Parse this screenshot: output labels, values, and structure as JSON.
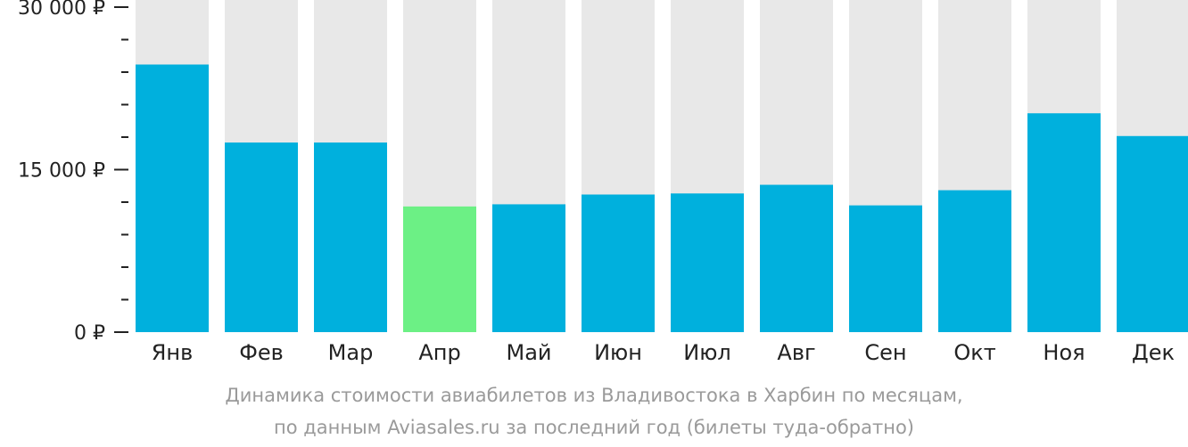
{
  "chart_data": {
    "type": "bar",
    "categories": [
      "Янв",
      "Фев",
      "Мар",
      "Апр",
      "Май",
      "Июн",
      "Июл",
      "Авг",
      "Сен",
      "Окт",
      "Ноя",
      "Дек"
    ],
    "values": [
      24700,
      17500,
      17500,
      11600,
      11800,
      12700,
      12800,
      13600,
      11700,
      13100,
      20200,
      18100
    ],
    "ylim": [
      0,
      30000
    ],
    "yticks": [
      {
        "value": 0,
        "label": "0 ₽"
      },
      {
        "value": 15000,
        "label": "15 000 ₽"
      },
      {
        "value": 30000,
        "label": "30 000 ₽"
      }
    ],
    "minor_tick_step": 3000,
    "highlight_index": 3,
    "grid": false,
    "colors": {
      "bar": "#00b0dd",
      "highlight": "#6cf085",
      "background_bar": "#e8e8e8",
      "axis": "#222222"
    }
  },
  "caption": {
    "line1": "Динамика стоимости авиабилетов из Владивостока в Харбин по месяцам,",
    "line2": "по данным Aviasales.ru за последний год (билеты туда-обратно)"
  }
}
